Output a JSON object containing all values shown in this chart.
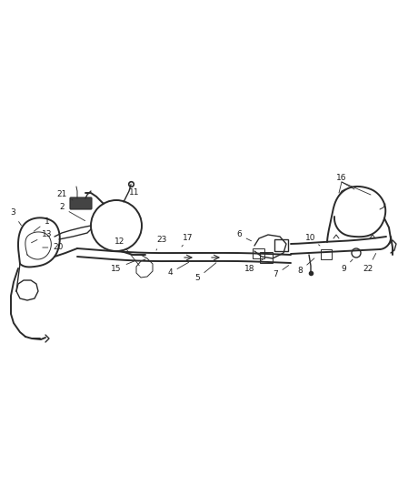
{
  "background_color": "#ffffff",
  "line_color": "#2a2a2a",
  "label_color": "#1a1a1a",
  "figsize": [
    4.38,
    5.33
  ],
  "dpi": 100,
  "lw_main": 1.4,
  "lw_med": 1.0,
  "lw_thin": 0.7,
  "label_fontsize": 6.5
}
